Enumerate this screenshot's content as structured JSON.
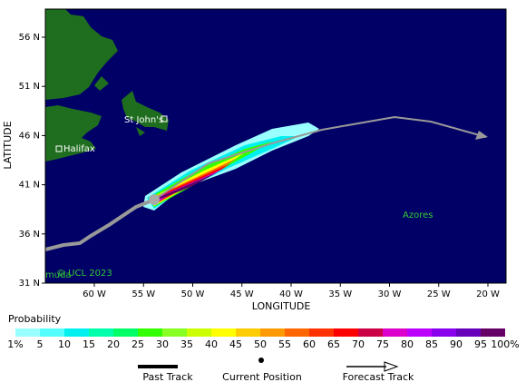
{
  "map": {
    "x_title": "LONGITUDE",
    "y_title": "LATITUDE",
    "lat_ticks": [
      "56 N",
      "51 N",
      "46 N",
      "41 N",
      "36 N",
      "31 N"
    ],
    "lon_ticks": [
      "60 W",
      "55 W",
      "50 W",
      "45 W",
      "40 W",
      "35 W",
      "30 W",
      "25 W",
      "20 W"
    ],
    "places": {
      "st_johns": "St John's",
      "halifax": "Halifax",
      "azores": "Azores",
      "bermuda": "muda"
    },
    "credit": "© UCL 2023"
  },
  "legend": {
    "title": "Probability",
    "labels": [
      "1%",
      "5",
      "10",
      "15",
      "20",
      "25",
      "30",
      "35",
      "40",
      "45",
      "50",
      "55",
      "60",
      "65",
      "70",
      "75",
      "80",
      "85",
      "90",
      "95",
      "100%"
    ],
    "colors": [
      "#99ffff",
      "#55ffff",
      "#00f0f0",
      "#00ffaa",
      "#00ff66",
      "#33ff00",
      "#88ff22",
      "#ccff00",
      "#ffff00",
      "#ffcc00",
      "#ff9900",
      "#ff6600",
      "#ff3300",
      "#ff0000",
      "#cc0044",
      "#dd00cc",
      "#bb00ff",
      "#8800ee",
      "#6600bb",
      "#660066"
    ]
  },
  "key": {
    "past": "Past Track",
    "current": "Current Position",
    "forecast": "Forecast Track"
  }
}
